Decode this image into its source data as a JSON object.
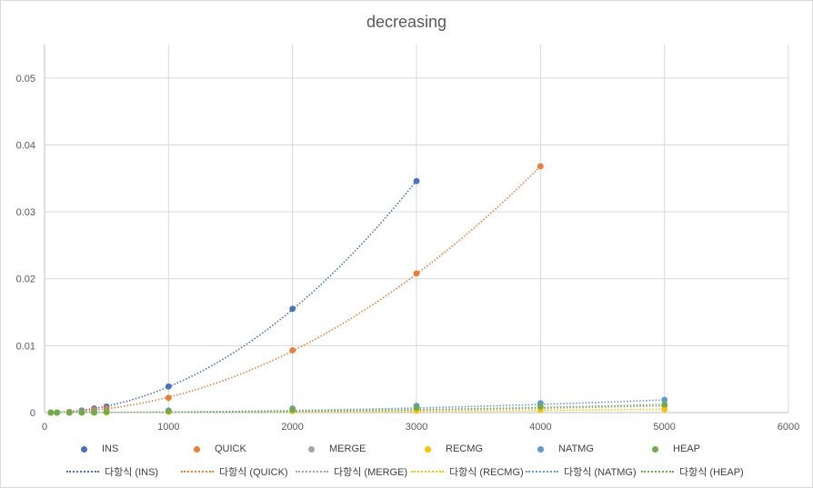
{
  "chart_data": {
    "type": "scatter",
    "title": "decreasing",
    "xlabel": "",
    "ylabel": "",
    "xlim": [
      0,
      6000
    ],
    "ylim": [
      0,
      0.055
    ],
    "x_ticks": [
      0,
      1000,
      2000,
      3000,
      4000,
      5000,
      6000
    ],
    "y_ticks": [
      0,
      0.01,
      0.02,
      0.03,
      0.04,
      0.05
    ],
    "x_tick_labels": [
      "0",
      "1000",
      "2000",
      "3000",
      "4000",
      "5000",
      "6000"
    ],
    "y_tick_labels": [
      "0",
      "0.01",
      "0.02",
      "0.03",
      "0.04",
      "0.05"
    ],
    "grid": true,
    "legend_position": "bottom",
    "series": [
      {
        "name": "INS",
        "color": "#4472c4",
        "x": [
          50,
          100,
          200,
          300,
          400,
          500,
          1000,
          2000,
          3000
        ],
        "y": [
          0,
          0,
          0.0001,
          0.0003,
          0.0006,
          0.0009,
          0.0039,
          0.0155,
          0.0346
        ]
      },
      {
        "name": "QUICK",
        "color": "#ed7d31",
        "x": [
          50,
          100,
          200,
          300,
          400,
          500,
          1000,
          2000,
          3000,
          4000
        ],
        "y": [
          0,
          0,
          0.0001,
          0.0002,
          0.0004,
          0.0006,
          0.0022,
          0.0093,
          0.0208,
          0.0368
        ]
      },
      {
        "name": "MERGE",
        "color": "#a5a5a5",
        "x": [
          50,
          100,
          200,
          300,
          400,
          500,
          1000,
          2000,
          3000,
          4000,
          5000
        ],
        "y": [
          0,
          0,
          0,
          0,
          0.0001,
          0.0001,
          0.0002,
          0.0004,
          0.0006,
          0.0008,
          0.001
        ]
      },
      {
        "name": "RECMG",
        "color": "#ffc000",
        "x": [
          50,
          100,
          200,
          300,
          400,
          500,
          1000,
          2000,
          3000,
          4000,
          5000
        ],
        "y": [
          0,
          0,
          0,
          0,
          0,
          0,
          0.0001,
          0.0002,
          0.0003,
          0.0004,
          0.0005
        ]
      },
      {
        "name": "NATMG",
        "color": "#5b9bd5",
        "x": [
          50,
          100,
          200,
          300,
          400,
          500,
          1000,
          2000,
          3000,
          4000,
          5000
        ],
        "y": [
          0,
          0,
          0,
          0.0001,
          0.0001,
          0.0002,
          0.0003,
          0.0006,
          0.001,
          0.0014,
          0.0019
        ]
      },
      {
        "name": "HEAP",
        "color": "#70ad47",
        "x": [
          50,
          100,
          200,
          300,
          400,
          500,
          1000,
          2000,
          3000,
          4000,
          5000
        ],
        "y": [
          0,
          0,
          0,
          0,
          0,
          0.0001,
          0.0002,
          0.0004,
          0.0007,
          0.0009,
          0.0012
        ]
      }
    ],
    "trendlines": [
      {
        "name": "다항식 (INS)",
        "color": "#4472c4",
        "coef": [
          3.85e-09,
          0,
          0
        ]
      },
      {
        "name": "다항식 (QUICK)",
        "color": "#ed7d31",
        "coef": [
          2.3e-09,
          0,
          0
        ]
      },
      {
        "name": "다항식 (MERGE)",
        "color": "#a5a5a5",
        "coef": [
          4e-11,
          0,
          2e-07
        ]
      },
      {
        "name": "다항식 (RECMG)",
        "color": "#ffc000",
        "coef": [
          2e-11,
          0,
          1e-07
        ]
      },
      {
        "name": "다항식 (NATMG)",
        "color": "#5b9bd5",
        "coef": [
          7.6e-11,
          0,
          2e-07
        ]
      },
      {
        "name": "다항식 (HEAP)",
        "color": "#70ad47",
        "coef": [
          4.8e-11,
          0,
          2e-07
        ]
      }
    ]
  }
}
